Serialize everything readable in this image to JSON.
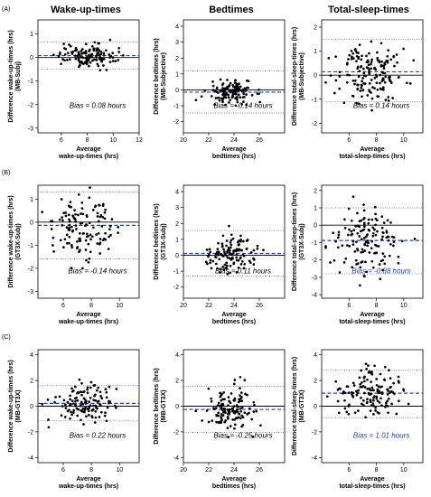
{
  "column_titles": [
    "Wake-up-times",
    "Bedtimes",
    "Total-sleep-times"
  ],
  "row_labels": [
    "(A)",
    "(B)",
    "(C)"
  ],
  "colors": {
    "points": "#000000",
    "bias_line": "#1f3fbf",
    "bias_text_highlight": "#1f3fbf",
    "zero_line": "#000000",
    "limits_line": "#666666"
  },
  "chart_data": [
    {
      "type": "scatter",
      "row": "(A)",
      "column": "Wake-up-times",
      "xlabel": "Average\nwake-up-times (hrs)",
      "ylabel": "Difference wake-up-times (hrs)\n(MB-Subj)",
      "xlim": [
        4.2,
        12
      ],
      "ylim": [
        -3.2,
        1.6
      ],
      "xticks": [
        6,
        8,
        10,
        12
      ],
      "yticks": [
        -3,
        -2,
        -1,
        0,
        1
      ],
      "bias": 0.08,
      "loa": [
        0.65,
        -0.5
      ],
      "bias_label": "Bias = 0.08 hours",
      "bias_color": "black",
      "x_center": 7.9,
      "x_sd": 1.1,
      "y_sd": 0.25,
      "n": 130
    },
    {
      "type": "scatter",
      "row": "(A)",
      "column": "Bedtimes",
      "xlabel": "Average\nbedtimes (hrs)",
      "ylabel": "Difference bedtimes (hrs)\n(MB-Subjective)",
      "xlim": [
        20,
        28
      ],
      "ylim": [
        -2.7,
        4.4
      ],
      "xticks": [
        20,
        22,
        24,
        26
      ],
      "yticks": [
        -2,
        -1,
        0,
        1,
        2,
        3,
        4
      ],
      "bias": -0.14,
      "loa": [
        1.2,
        -1.45
      ],
      "bias_label": "Bias = -0.14 hours",
      "bias_color": "black",
      "x_center": 23.8,
      "x_sd": 0.9,
      "y_sd": 0.35,
      "n": 130
    },
    {
      "type": "scatter",
      "row": "(A)",
      "column": "Total-sleep-times",
      "xlabel": "Average\ntotal-sleep-times (hrs)",
      "ylabel": "Difference total-sleep-times (hrs)\n(MB-Subjective)",
      "xlim": [
        4,
        11.4
      ],
      "ylim": [
        -2.4,
        2.3
      ],
      "xticks": [
        6,
        8,
        10
      ],
      "yticks": [
        -2,
        -1,
        0,
        1,
        2
      ],
      "bias": 0.14,
      "loa": [
        1.5,
        -1.1
      ],
      "bias_label": "Bias = 0.14 hours",
      "bias_color": "black",
      "x_center": 7.5,
      "x_sd": 1.2,
      "y_sd": 0.6,
      "n": 160
    },
    {
      "type": "scatter",
      "row": "(B)",
      "column": "Wake-up-times",
      "xlabel": "Average\nwake-up-times (hrs)",
      "ylabel": "Difference wake-up-times (hrs)\n(GT3X-Subj)",
      "xlim": [
        4.2,
        11.4
      ],
      "ylim": [
        -3.3,
        1.6
      ],
      "xticks": [
        6,
        8,
        10
      ],
      "yticks": [
        -3,
        -2,
        -1,
        0,
        1
      ],
      "bias": -0.14,
      "loa": [
        1.3,
        -1.6
      ],
      "bias_label": "Bias = -0.14 hours",
      "bias_color": "black",
      "x_center": 7.5,
      "x_sd": 1.2,
      "y_sd": 0.7,
      "n": 130
    },
    {
      "type": "scatter",
      "row": "(B)",
      "column": "Bedtimes",
      "xlabel": "Average\nbedtimes (hrs)",
      "ylabel": "Difference bedtimes (hrs)\n(GT3X-Subj)",
      "xlim": [
        20,
        28
      ],
      "ylim": [
        -2.7,
        4.4
      ],
      "xticks": [
        20,
        22,
        24,
        26
      ],
      "yticks": [
        -2,
        -1,
        0,
        1,
        2,
        3,
        4
      ],
      "bias": 0.11,
      "loa": [
        1.55,
        -1.3
      ],
      "bias_label": "Bias = 0.11 hours",
      "bias_color": "black",
      "x_center": 23.7,
      "x_sd": 1.0,
      "y_sd": 0.6,
      "n": 120
    },
    {
      "type": "scatter",
      "row": "(B)",
      "column": "Total-sleep-times",
      "xlabel": "Average\ntotal-sleep-times (hrs)",
      "ylabel": "Difference total-sleep-times (hrs)\n(GT3X-Subj)",
      "xlim": [
        4,
        11.4
      ],
      "ylim": [
        -4.2,
        2.3
      ],
      "xticks": [
        6,
        8,
        10
      ],
      "yticks": [
        -4,
        -3,
        -2,
        -1,
        0,
        1,
        2
      ],
      "bias": -0.88,
      "loa": [
        1.0,
        -2.8
      ],
      "bias_label": "Bias = -0.88 hours",
      "bias_color": "blue",
      "x_center": 7.4,
      "x_sd": 1.2,
      "y_sd": 0.95,
      "n": 140
    },
    {
      "type": "scatter",
      "row": "(C)",
      "column": "Wake-up-times",
      "xlabel": "Average\nwake-up-times (hrs)",
      "ylabel": "Difference wake-up-times (hrs)\n(MB-GT3X)",
      "xlim": [
        4.2,
        11.4
      ],
      "ylim": [
        -4.4,
        4.4
      ],
      "xticks": [
        6,
        8,
        10
      ],
      "yticks": [
        -4,
        -2,
        0,
        2,
        4
      ],
      "bias": 0.22,
      "loa": [
        1.6,
        -1.15
      ],
      "bias_label": "Bias = 0.22 hours",
      "bias_color": "black",
      "x_center": 7.6,
      "x_sd": 1.1,
      "y_sd": 0.7,
      "n": 130
    },
    {
      "type": "scatter",
      "row": "(C)",
      "column": "Bedtimes",
      "xlabel": "Average\nbedtimes (hrs)",
      "ylabel": "Difference bedtimes (hrs)\n(MB-GT3X)",
      "xlim": [
        20,
        28
      ],
      "ylim": [
        -4.4,
        4.4
      ],
      "xticks": [
        20,
        22,
        24,
        26
      ],
      "yticks": [
        -4,
        -2,
        0,
        2,
        4
      ],
      "bias": -0.25,
      "loa": [
        1.55,
        -2.05
      ],
      "bias_label": "Bias = -0.25 hours",
      "bias_color": "black",
      "x_center": 23.7,
      "x_sd": 0.9,
      "y_sd": 0.85,
      "n": 130
    },
    {
      "type": "scatter",
      "row": "(C)",
      "column": "Total-sleep-times",
      "xlabel": "Average\ntotal-sleep-times (hrs)",
      "ylabel": "Difference total-sleep-times (hrs)\n(MB-GT3X)",
      "xlim": [
        4,
        11.4
      ],
      "ylim": [
        -4.4,
        4.4
      ],
      "xticks": [
        6,
        8,
        10
      ],
      "yticks": [
        -4,
        -2,
        0,
        2,
        4
      ],
      "bias": 1.01,
      "loa": [
        2.8,
        -0.9
      ],
      "bias_label": "Bias = 1.01 hours",
      "bias_color": "blue",
      "x_center": 7.6,
      "x_sd": 1.1,
      "y_sd": 0.95,
      "n": 140
    }
  ]
}
